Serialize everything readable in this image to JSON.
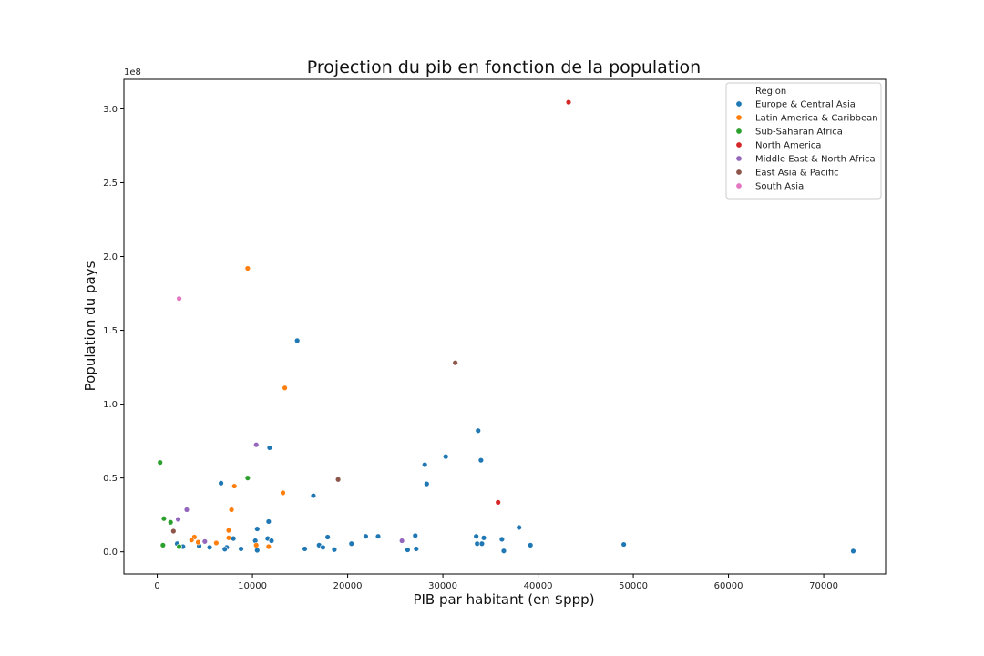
{
  "chart_data": {
    "type": "scatter",
    "title": "Projection du pib en fonction de la population",
    "xlabel": "PIB par habitant (en $ppp)",
    "ylabel": "Population du pays",
    "y_offset_label": "1e8",
    "xlim": [
      -3500,
      76500
    ],
    "ylim": [
      -15000000,
      320000000
    ],
    "x_ticks": [
      0,
      10000,
      20000,
      30000,
      40000,
      50000,
      60000,
      70000
    ],
    "x_tick_labels": [
      "0",
      "10000",
      "20000",
      "30000",
      "40000",
      "50000",
      "60000",
      "70000"
    ],
    "y_ticks": [
      0,
      50000000,
      100000000,
      150000000,
      200000000,
      250000000,
      300000000
    ],
    "y_tick_labels": [
      "0.0",
      "0.5",
      "1.0",
      "1.5",
      "2.0",
      "2.5",
      "3.0"
    ],
    "grid": false,
    "legend": {
      "title": "Region",
      "placement": "top-right"
    },
    "series": [
      {
        "name": "Europe & Central Asia",
        "color": "#1f77b4",
        "points": [
          [
            14700,
            143000000
          ],
          [
            33700,
            82000000
          ],
          [
            11800,
            70500000
          ],
          [
            30300,
            64500000
          ],
          [
            34000,
            62000000
          ],
          [
            28100,
            59000000
          ],
          [
            6700,
            46500000
          ],
          [
            28300,
            46000000
          ],
          [
            16400,
            38000000
          ],
          [
            11700,
            20500000
          ],
          [
            38000,
            16500000
          ],
          [
            10500,
            15500000
          ],
          [
            27100,
            11000000
          ],
          [
            21900,
            10500000
          ],
          [
            23200,
            10500000
          ],
          [
            33500,
            10500000
          ],
          [
            17900,
            10000000
          ],
          [
            34300,
            9500000
          ],
          [
            8000,
            9000000
          ],
          [
            11600,
            9000000
          ],
          [
            36200,
            8500000
          ],
          [
            10300,
            7500000
          ],
          [
            12000,
            7500000
          ],
          [
            2100,
            5500000
          ],
          [
            20400,
            5500000
          ],
          [
            33600,
            5500000
          ],
          [
            34100,
            5500000
          ],
          [
            49000,
            5000000
          ],
          [
            39200,
            4500000
          ],
          [
            17000,
            4500000
          ],
          [
            4400,
            4000000
          ],
          [
            2700,
            3500000
          ],
          [
            5500,
            3000000
          ],
          [
            17400,
            3000000
          ],
          [
            7300,
            3000000
          ],
          [
            8800,
            2000000
          ],
          [
            15500,
            2000000
          ],
          [
            18600,
            1500000
          ],
          [
            26300,
            1300000
          ],
          [
            27200,
            2000000
          ],
          [
            7100,
            1800000
          ],
          [
            36400,
            600000
          ],
          [
            10500,
            1000000
          ],
          [
            73100,
            500000
          ]
        ]
      },
      {
        "name": "Latin America & Caribbean",
        "color": "#ff7f0e",
        "points": [
          [
            9500,
            192000000
          ],
          [
            13400,
            111000000
          ],
          [
            8100,
            44500000
          ],
          [
            13200,
            40000000
          ],
          [
            7800,
            28500000
          ],
          [
            7500,
            14500000
          ],
          [
            7500,
            9500000
          ],
          [
            3900,
            10000000
          ],
          [
            3600,
            8000000
          ],
          [
            4300,
            6500000
          ],
          [
            6200,
            6000000
          ],
          [
            10400,
            4500000
          ],
          [
            11700,
            3500000
          ]
        ]
      },
      {
        "name": "Sub-Saharan Africa",
        "color": "#2ca02c",
        "points": [
          [
            300,
            60500000
          ],
          [
            9500,
            50000000
          ],
          [
            700,
            22500000
          ],
          [
            1400,
            20000000
          ],
          [
            600,
            4500000
          ],
          [
            2300,
            3500000
          ]
        ]
      },
      {
        "name": "North America",
        "color": "#d62728",
        "points": [
          [
            43200,
            304500000
          ],
          [
            35800,
            33500000
          ]
        ]
      },
      {
        "name": "Middle East & North Africa",
        "color": "#9467bd",
        "points": [
          [
            10400,
            72500000
          ],
          [
            3100,
            28500000
          ],
          [
            2200,
            22000000
          ],
          [
            25700,
            7500000
          ],
          [
            5000,
            7000000
          ]
        ]
      },
      {
        "name": "East Asia & Pacific",
        "color": "#8c564b",
        "points": [
          [
            31300,
            128000000
          ],
          [
            19000,
            49000000
          ],
          [
            1700,
            14000000
          ]
        ]
      },
      {
        "name": "South Asia",
        "color": "#e377c2",
        "points": [
          [
            2300,
            171500000
          ]
        ]
      }
    ]
  }
}
